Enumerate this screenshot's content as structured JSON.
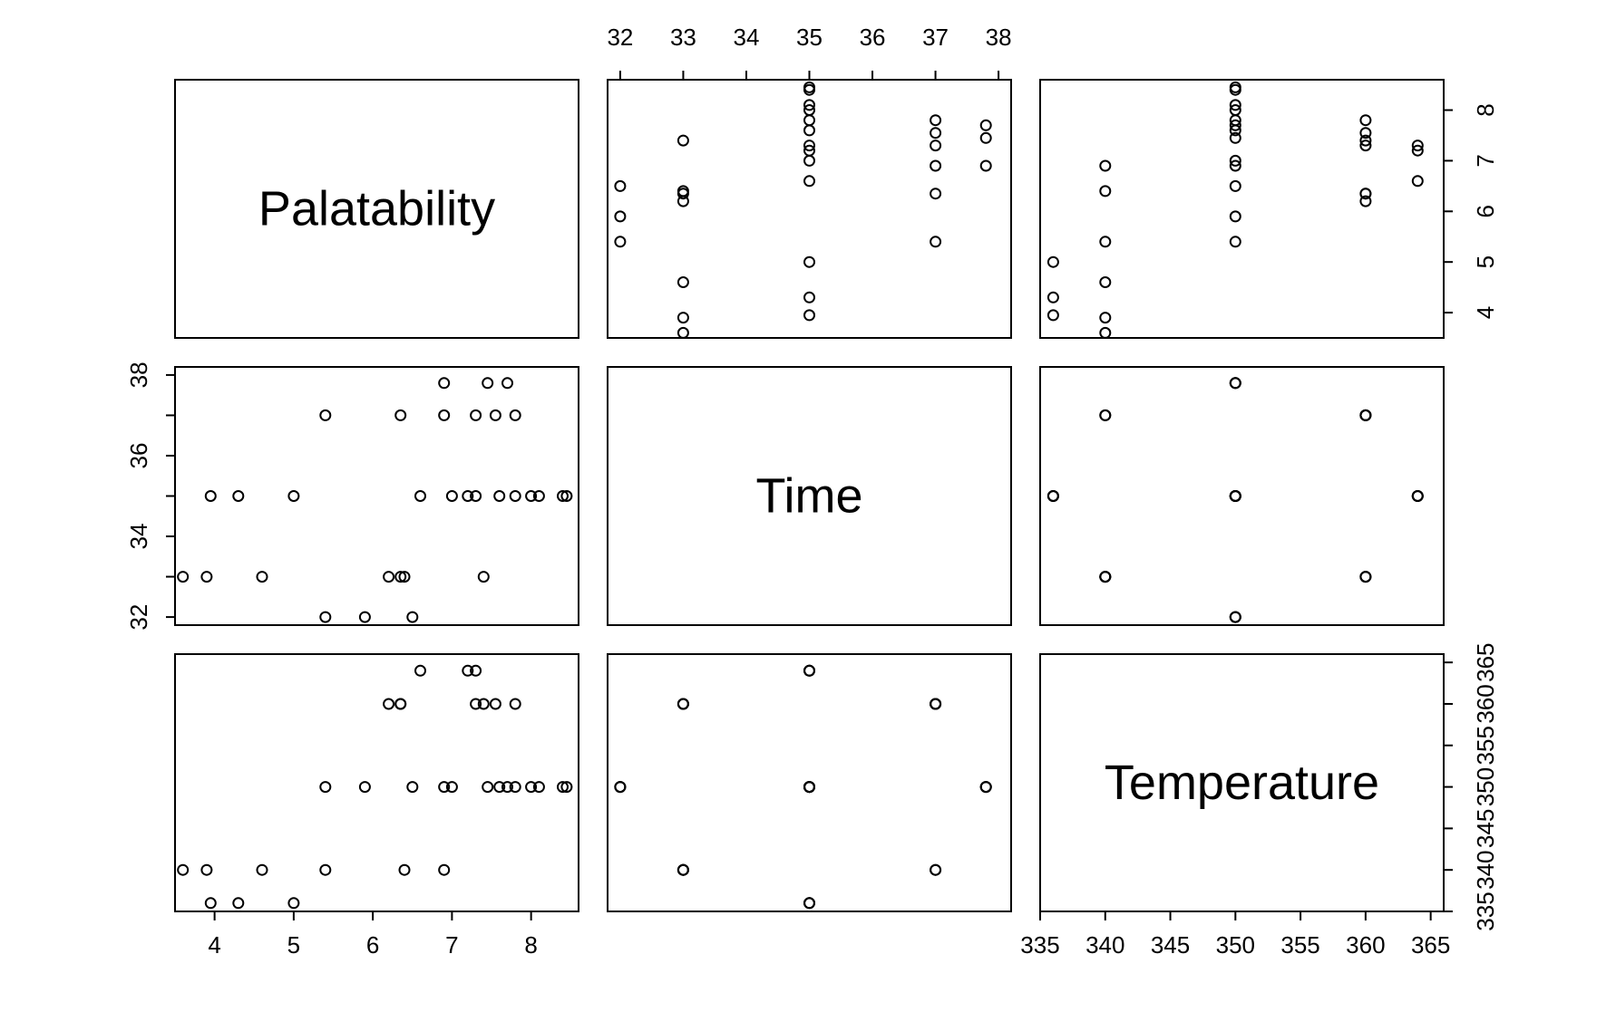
{
  "chart_data": {
    "type": "scatter",
    "variables": [
      "Palatability",
      "Time",
      "Temperature"
    ],
    "observations": [
      {
        "Palatability": 5.4,
        "Time": 32,
        "Temperature": 350
      },
      {
        "Palatability": 5.9,
        "Time": 32,
        "Temperature": 350
      },
      {
        "Palatability": 6.5,
        "Time": 32,
        "Temperature": 350
      },
      {
        "Palatability": 3.6,
        "Time": 33,
        "Temperature": 340
      },
      {
        "Palatability": 3.9,
        "Time": 33,
        "Temperature": 340
      },
      {
        "Palatability": 4.6,
        "Time": 33,
        "Temperature": 340
      },
      {
        "Palatability": 6.4,
        "Time": 33,
        "Temperature": 340
      },
      {
        "Palatability": 6.2,
        "Time": 33,
        "Temperature": 360
      },
      {
        "Palatability": 6.35,
        "Time": 33,
        "Temperature": 360
      },
      {
        "Palatability": 7.4,
        "Time": 33,
        "Temperature": 360
      },
      {
        "Palatability": 3.95,
        "Time": 35,
        "Temperature": 336
      },
      {
        "Palatability": 4.3,
        "Time": 35,
        "Temperature": 336
      },
      {
        "Palatability": 5.0,
        "Time": 35,
        "Temperature": 336
      },
      {
        "Palatability": 6.6,
        "Time": 35,
        "Temperature": 364
      },
      {
        "Palatability": 7.2,
        "Time": 35,
        "Temperature": 364
      },
      {
        "Palatability": 7.3,
        "Time": 35,
        "Temperature": 364
      },
      {
        "Palatability": 7.0,
        "Time": 35,
        "Temperature": 350
      },
      {
        "Palatability": 7.6,
        "Time": 35,
        "Temperature": 350
      },
      {
        "Palatability": 7.8,
        "Time": 35,
        "Temperature": 350
      },
      {
        "Palatability": 8.0,
        "Time": 35,
        "Temperature": 350
      },
      {
        "Palatability": 8.1,
        "Time": 35,
        "Temperature": 350
      },
      {
        "Palatability": 8.4,
        "Time": 35,
        "Temperature": 350
      },
      {
        "Palatability": 8.45,
        "Time": 35,
        "Temperature": 350
      },
      {
        "Palatability": 5.4,
        "Time": 37,
        "Temperature": 340
      },
      {
        "Palatability": 6.9,
        "Time": 37,
        "Temperature": 340
      },
      {
        "Palatability": 6.35,
        "Time": 37,
        "Temperature": 360
      },
      {
        "Palatability": 7.3,
        "Time": 37,
        "Temperature": 360
      },
      {
        "Palatability": 7.55,
        "Time": 37,
        "Temperature": 360
      },
      {
        "Palatability": 7.8,
        "Time": 37,
        "Temperature": 360
      },
      {
        "Palatability": 6.9,
        "Time": 37.8,
        "Temperature": 350
      },
      {
        "Palatability": 7.45,
        "Time": 37.8,
        "Temperature": 350
      },
      {
        "Palatability": 7.7,
        "Time": 37.8,
        "Temperature": 350
      }
    ],
    "ranges": {
      "Palatability": [
        3.5,
        8.6
      ],
      "Time": [
        31.8,
        38.2
      ],
      "Temperature": [
        335,
        366
      ]
    },
    "ticks": {
      "Palatability": [
        4,
        5,
        6,
        7,
        8
      ],
      "Time": [
        32,
        33,
        34,
        35,
        36,
        37,
        38
      ],
      "Temperature": [
        335,
        340,
        345,
        350,
        355,
        360,
        365
      ]
    },
    "marker": "open-circle",
    "grid": false
  }
}
